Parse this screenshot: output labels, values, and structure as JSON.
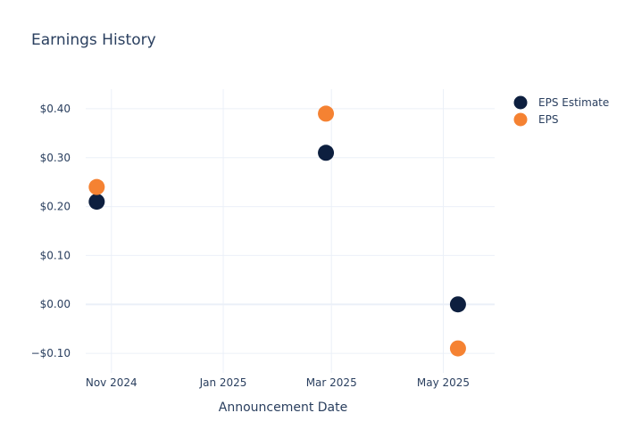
{
  "chart_data": {
    "type": "scatter",
    "title": "Earnings History",
    "xlabel": "Announcement Date",
    "ylabel": "",
    "x_tick_labels": [
      {
        "date": "2024-11-01",
        "label": "Nov 2024"
      },
      {
        "date": "2025-01-01",
        "label": "Jan 2025"
      },
      {
        "date": "2025-03-01",
        "label": "Mar 2025"
      },
      {
        "date": "2025-05-01",
        "label": "May 2025"
      }
    ],
    "y_tick_labels": [
      {
        "value": -0.1,
        "label": "−$0.10"
      },
      {
        "value": 0.0,
        "label": "$0.00"
      },
      {
        "value": 0.1,
        "label": "$0.10"
      },
      {
        "value": 0.2,
        "label": "$0.20"
      },
      {
        "value": 0.3,
        "label": "$0.30"
      },
      {
        "value": 0.4,
        "label": "$0.40"
      }
    ],
    "xlim": [
      "2024-10-18",
      "2025-05-29"
    ],
    "ylim": [
      -0.14,
      0.44
    ],
    "grid": true,
    "legend_position": "top-right",
    "series": [
      {
        "name": "EPS Estimate",
        "color": "#0d1f3f",
        "points": [
          {
            "x": "2024-10-24",
            "y": 0.21
          },
          {
            "x": "2025-02-26",
            "y": 0.31
          },
          {
            "x": "2025-05-09",
            "y": 0.0
          }
        ]
      },
      {
        "name": "EPS",
        "color": "#f58232",
        "points": [
          {
            "x": "2024-10-24",
            "y": 0.24
          },
          {
            "x": "2025-02-26",
            "y": 0.39
          },
          {
            "x": "2025-05-09",
            "y": -0.09
          }
        ]
      }
    ]
  }
}
